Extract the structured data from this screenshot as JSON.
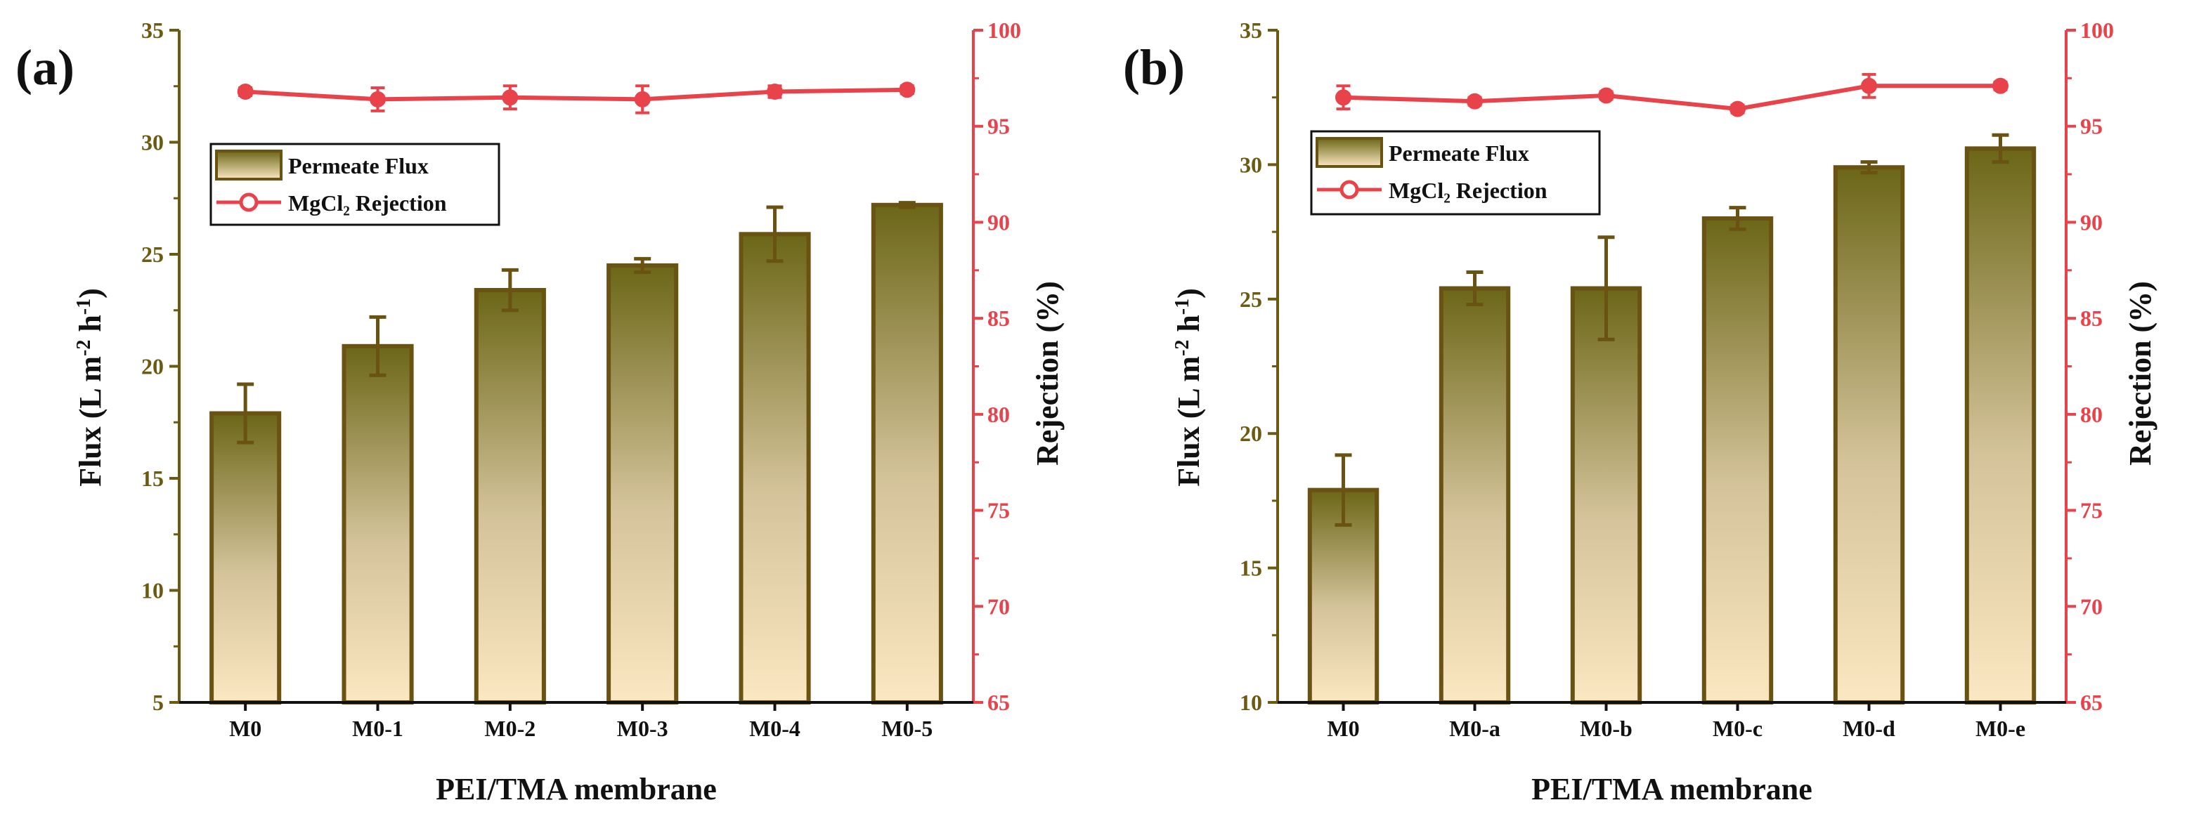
{
  "chart_data": [
    {
      "type": "bar+line",
      "panel_label": "(a)",
      "categories": [
        "M0",
        "M0-1",
        "M0-2",
        "M0-3",
        "M0-4",
        "M0-5"
      ],
      "series": [
        {
          "name": "Permeate Flux",
          "axis": "left",
          "kind": "bar",
          "values": [
            17.9,
            20.9,
            23.4,
            24.5,
            25.9,
            27.2
          ],
          "errors": [
            1.3,
            1.3,
            0.9,
            0.3,
            1.2,
            0.1
          ]
        },
        {
          "name": "MgCl₂ Rejection",
          "axis": "right",
          "kind": "line",
          "values": [
            96.8,
            96.4,
            96.5,
            96.4,
            96.8,
            96.9
          ],
          "errors": [
            0.2,
            0.6,
            0.6,
            0.7,
            0.3,
            0.2
          ]
        }
      ],
      "xlabel": "PEI/TMA membrane",
      "ylabel_left": "Flux (L m⁻² h⁻¹)",
      "ylabel_right": "Rejection (%)",
      "ylim_left": [
        5,
        35
      ],
      "yticks_left": [
        5,
        10,
        15,
        20,
        25,
        30,
        35
      ],
      "ylim_right": [
        65,
        100
      ],
      "yticks_right": [
        65,
        70,
        75,
        80,
        85,
        90,
        95,
        100
      ],
      "legend": {
        "position": "top-left",
        "entries": [
          "Permeate Flux",
          "MgCl₂ Rejection"
        ]
      }
    },
    {
      "type": "bar+line",
      "panel_label": "(b)",
      "categories": [
        "M0",
        "M0-a",
        "M0-b",
        "M0-c",
        "M0-d",
        "M0-e"
      ],
      "series": [
        {
          "name": "Permeate Flux",
          "axis": "left",
          "kind": "bar",
          "values": [
            17.9,
            25.4,
            25.4,
            28.0,
            29.9,
            30.6
          ],
          "errors": [
            1.3,
            0.6,
            1.9,
            0.4,
            0.2,
            0.5
          ]
        },
        {
          "name": "MgCl₂ Rejection",
          "axis": "right",
          "kind": "line",
          "values": [
            96.5,
            96.3,
            96.6,
            95.9,
            97.1,
            97.1
          ],
          "errors": [
            0.6,
            0.2,
            0.2,
            0.2,
            0.6,
            0.2
          ]
        }
      ],
      "xlabel": "PEI/TMA membrane",
      "ylabel_left": "Flux (L m⁻² h⁻¹)",
      "ylabel_right": "Rejection (%)",
      "ylim_left": [
        10,
        35
      ],
      "yticks_left": [
        10,
        15,
        20,
        25,
        30,
        35
      ],
      "ylim_right": [
        65,
        100
      ],
      "yticks_right": [
        65,
        70,
        75,
        80,
        85,
        90,
        95,
        100
      ],
      "legend": {
        "position": "top-left",
        "entries": [
          "Permeate Flux",
          "MgCl₂ Rejection"
        ]
      }
    }
  ],
  "colors": {
    "bar_top": "#6b6617",
    "bar_bottom": "#fbe7c1",
    "bar_stroke": "#6a5212",
    "error_bar": "#6a5212",
    "left_axis": "#6b5a10",
    "right_axis": "#e8434a",
    "line": "#e8434a",
    "text": "#111111"
  }
}
